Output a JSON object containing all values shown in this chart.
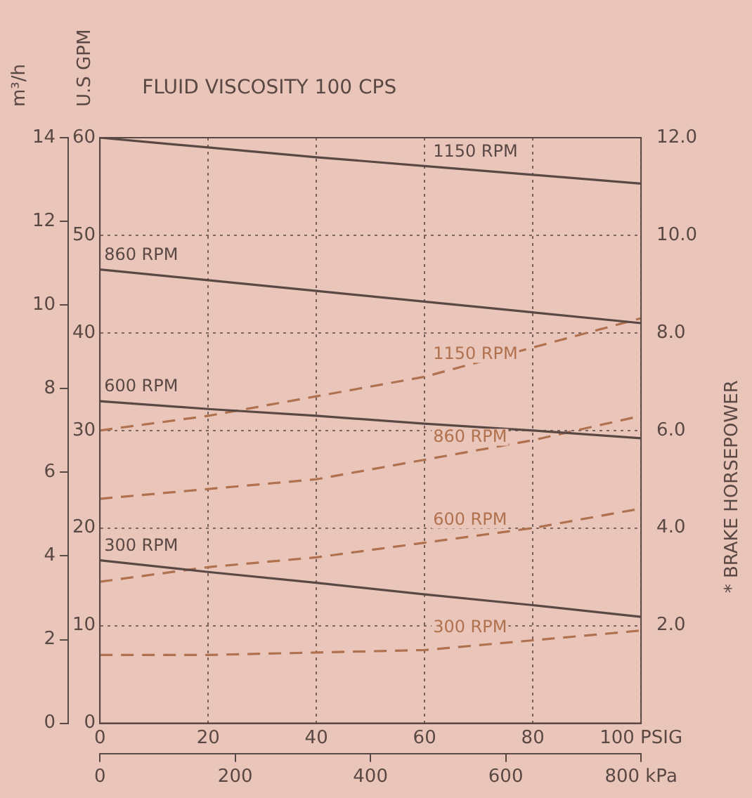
{
  "chart_data": {
    "type": "line",
    "title": "FLUID VISCOSITY 100 CPS",
    "ylabel": "U.S GPM",
    "y2label": "* BRAKE HORSEPOWER",
    "y3label": "m³/h",
    "x": [
      0,
      20,
      40,
      60,
      80,
      100
    ],
    "xlim": [
      0,
      100
    ],
    "xticks": [
      0,
      20,
      40,
      60,
      80,
      {
        "value": 100,
        "label": "100 PSIG"
      }
    ],
    "x2lim": [
      0,
      800
    ],
    "x2ticks": [
      0,
      200,
      400,
      600,
      {
        "value": 800,
        "label": "800 kPa"
      }
    ],
    "ylim": [
      0,
      60
    ],
    "yticks": [
      0,
      10,
      20,
      30,
      40,
      50,
      60
    ],
    "y2lim": [
      0,
      12
    ],
    "y2ticks": [
      {
        "value": 0,
        "label": null
      },
      {
        "value": 2,
        "label": "2.0"
      },
      {
        "value": 4,
        "label": "4.0"
      },
      {
        "value": 6,
        "label": "6.0"
      },
      {
        "value": 8,
        "label": "8.0"
      },
      {
        "value": 10,
        "label": "10.0"
      },
      {
        "value": 12,
        "label": "12.0"
      }
    ],
    "y3lim": [
      0,
      14
    ],
    "y3ticks": [
      0,
      2,
      4,
      6,
      8,
      10,
      12,
      14
    ],
    "grid": true,
    "marker": "none",
    "series": [
      {
        "name": "1150 RPM",
        "color": "#5a4844",
        "line_style": "solid",
        "values": [
          60,
          59,
          58,
          57.1,
          56.2,
          55.3
        ]
      },
      {
        "name": "860 RPM",
        "color": "#5a4844",
        "line_style": "solid",
        "values": [
          46.5,
          45.4,
          44.3,
          43.2,
          42.1,
          41
        ]
      },
      {
        "name": "600 RPM",
        "color": "#5a4844",
        "line_style": "solid",
        "values": [
          33,
          32.2,
          31.5,
          30.7,
          30,
          29.2
        ]
      },
      {
        "name": "300 RPM",
        "color": "#5a4844",
        "line_style": "solid",
        "values": [
          16.7,
          15.5,
          14.4,
          13.2,
          12.1,
          10.9
        ]
      },
      {
        "name": "1150 RPM",
        "color": "#b0714f",
        "line_style": "dashed",
        "axis": "y2",
        "values": [
          6.0,
          6.3,
          6.7,
          7.1,
          7.7,
          8.3
        ]
      },
      {
        "name": "860 RPM",
        "color": "#b0714f",
        "line_style": "dashed",
        "axis": "y2",
        "values": [
          4.6,
          4.8,
          5.0,
          5.4,
          5.8,
          6.3
        ]
      },
      {
        "name": "600 RPM",
        "color": "#b0714f",
        "line_style": "dashed",
        "axis": "y2",
        "values": [
          2.9,
          3.2,
          3.4,
          3.7,
          4.0,
          4.4
        ]
      },
      {
        "name": "300 RPM",
        "color": "#b0714f",
        "line_style": "dashed",
        "axis": "y2",
        "values": [
          1.4,
          1.4,
          1.45,
          1.5,
          1.7,
          1.9
        ]
      }
    ]
  }
}
